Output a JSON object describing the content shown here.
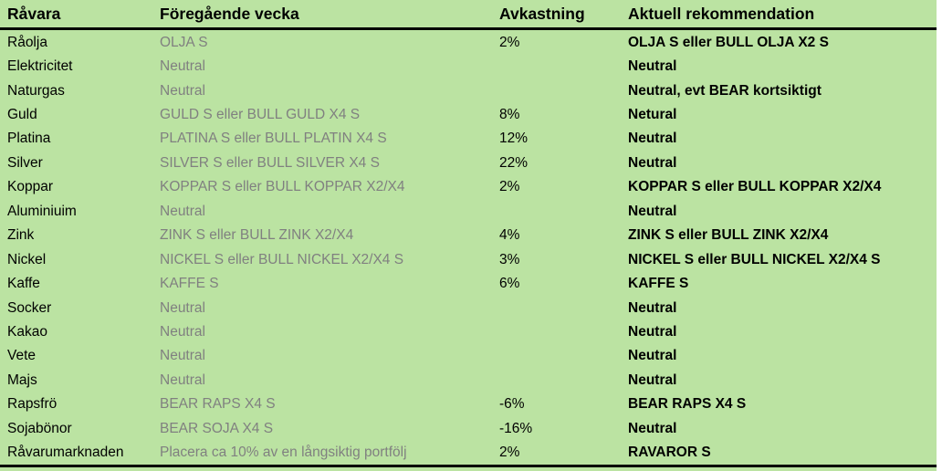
{
  "chart_data": {
    "type": "table",
    "title": "",
    "columns": [
      "Råvara",
      "Föregående vecka",
      "Avkastning",
      "Aktuell rekommendation"
    ],
    "rows": [
      {
        "ravara": "Råolja",
        "foregaende_vecka": "OLJA S",
        "avkastning": "2%",
        "rekommendation": "OLJA S eller BULL OLJA X2 S"
      },
      {
        "ravara": "Elektricitet",
        "foregaende_vecka": "Neutral",
        "avkastning": "",
        "rekommendation": "Neutral"
      },
      {
        "ravara": "Naturgas",
        "foregaende_vecka": "Neutral",
        "avkastning": "",
        "rekommendation": "Neutral, evt BEAR kortsiktigt"
      },
      {
        "ravara": "Guld",
        "foregaende_vecka": "GULD S eller BULL GULD X4 S",
        "avkastning": "8%",
        "rekommendation": "Netural"
      },
      {
        "ravara": "Platina",
        "foregaende_vecka": "PLATINA S eller BULL PLATIN X4 S",
        "avkastning": "12%",
        "rekommendation": "Neutral"
      },
      {
        "ravara": "Silver",
        "foregaende_vecka": "SILVER S eller BULL SILVER X4 S",
        "avkastning": "22%",
        "rekommendation": "Neutral"
      },
      {
        "ravara": "Koppar",
        "foregaende_vecka": "KOPPAR S eller BULL KOPPAR X2/X4",
        "avkastning": "2%",
        "rekommendation": "KOPPAR S eller BULL KOPPAR X2/X4"
      },
      {
        "ravara": "Aluminiuim",
        "foregaende_vecka": "Neutral",
        "avkastning": "",
        "rekommendation": "Neutral"
      },
      {
        "ravara": "Zink",
        "foregaende_vecka": "ZINK S eller BULL ZINK X2/X4",
        "avkastning": "4%",
        "rekommendation": "ZINK S eller BULL ZINK X2/X4"
      },
      {
        "ravara": "Nickel",
        "foregaende_vecka": "NICKEL S eller BULL NICKEL X2/X4 S",
        "avkastning": "3%",
        "rekommendation": "NICKEL S eller BULL NICKEL X2/X4 S"
      },
      {
        "ravara": "Kaffe",
        "foregaende_vecka": "KAFFE S",
        "avkastning": "6%",
        "rekommendation": "KAFFE S"
      },
      {
        "ravara": "Socker",
        "foregaende_vecka": "Neutral",
        "avkastning": "",
        "rekommendation": "Neutral"
      },
      {
        "ravara": "Kakao",
        "foregaende_vecka": "Neutral",
        "avkastning": "",
        "rekommendation": "Neutral"
      },
      {
        "ravara": "Vete",
        "foregaende_vecka": "Neutral",
        "avkastning": "",
        "rekommendation": "Neutral"
      },
      {
        "ravara": "Majs",
        "foregaende_vecka": "Neutral",
        "avkastning": "",
        "rekommendation": "Neutral"
      },
      {
        "ravara": "Rapsfrö",
        "foregaende_vecka": "BEAR RAPS X4 S",
        "avkastning": "-6%",
        "rekommendation": "BEAR RAPS X4 S"
      },
      {
        "ravara": "Sojabönor",
        "foregaende_vecka": "BEAR SOJA X4 S",
        "avkastning": "-16%",
        "rekommendation": "Neutral"
      },
      {
        "ravara": "Råvarumarknaden",
        "foregaende_vecka": "Placera ca 10% av en långsiktig portfölj",
        "avkastning": "2%",
        "rekommendation": "RAVAROR S"
      }
    ]
  },
  "colors": {
    "table_background": "#bbe3a2",
    "primary_text": "#000000",
    "secondary_text": "#808080",
    "border": "#000000"
  }
}
